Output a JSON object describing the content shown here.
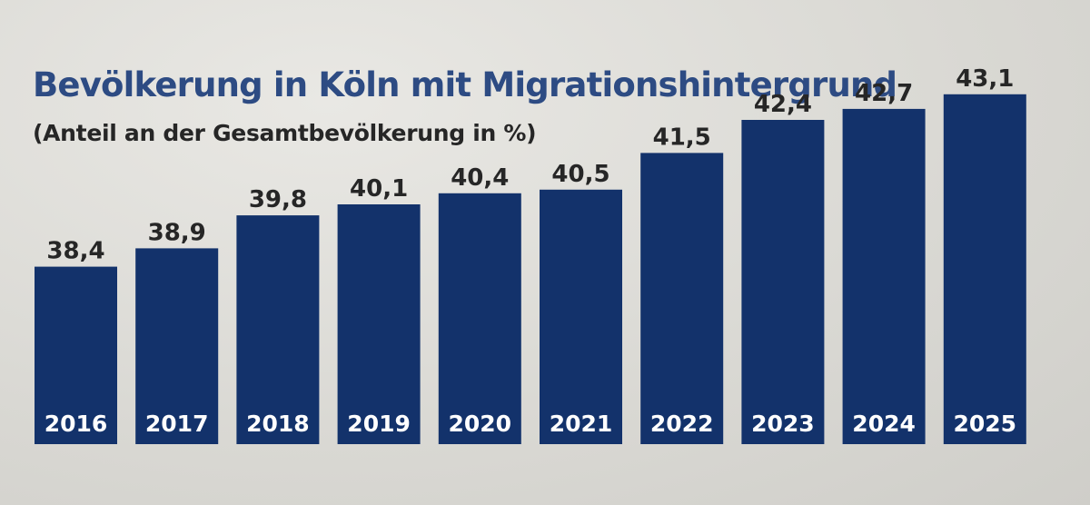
{
  "chart_data": {
    "type": "bar",
    "title": "Bevölkerung in Köln mit Migrationshintergrund",
    "subtitle": "(Anteil an der Gesamtbevölkerung in %)",
    "categories": [
      "2016",
      "2017",
      "2018",
      "2019",
      "2020",
      "2021",
      "2022",
      "2023",
      "2024",
      "2025"
    ],
    "values": [
      38.4,
      38.9,
      39.8,
      40.1,
      40.4,
      40.5,
      41.5,
      42.4,
      42.7,
      43.1
    ],
    "value_labels": [
      "38,4",
      "38,9",
      "39,8",
      "40,1",
      "40,4",
      "40,5",
      "41,5",
      "42,4",
      "42,7",
      "43,1"
    ],
    "bar_color": "#13326b",
    "grid": false,
    "legend": "none"
  }
}
